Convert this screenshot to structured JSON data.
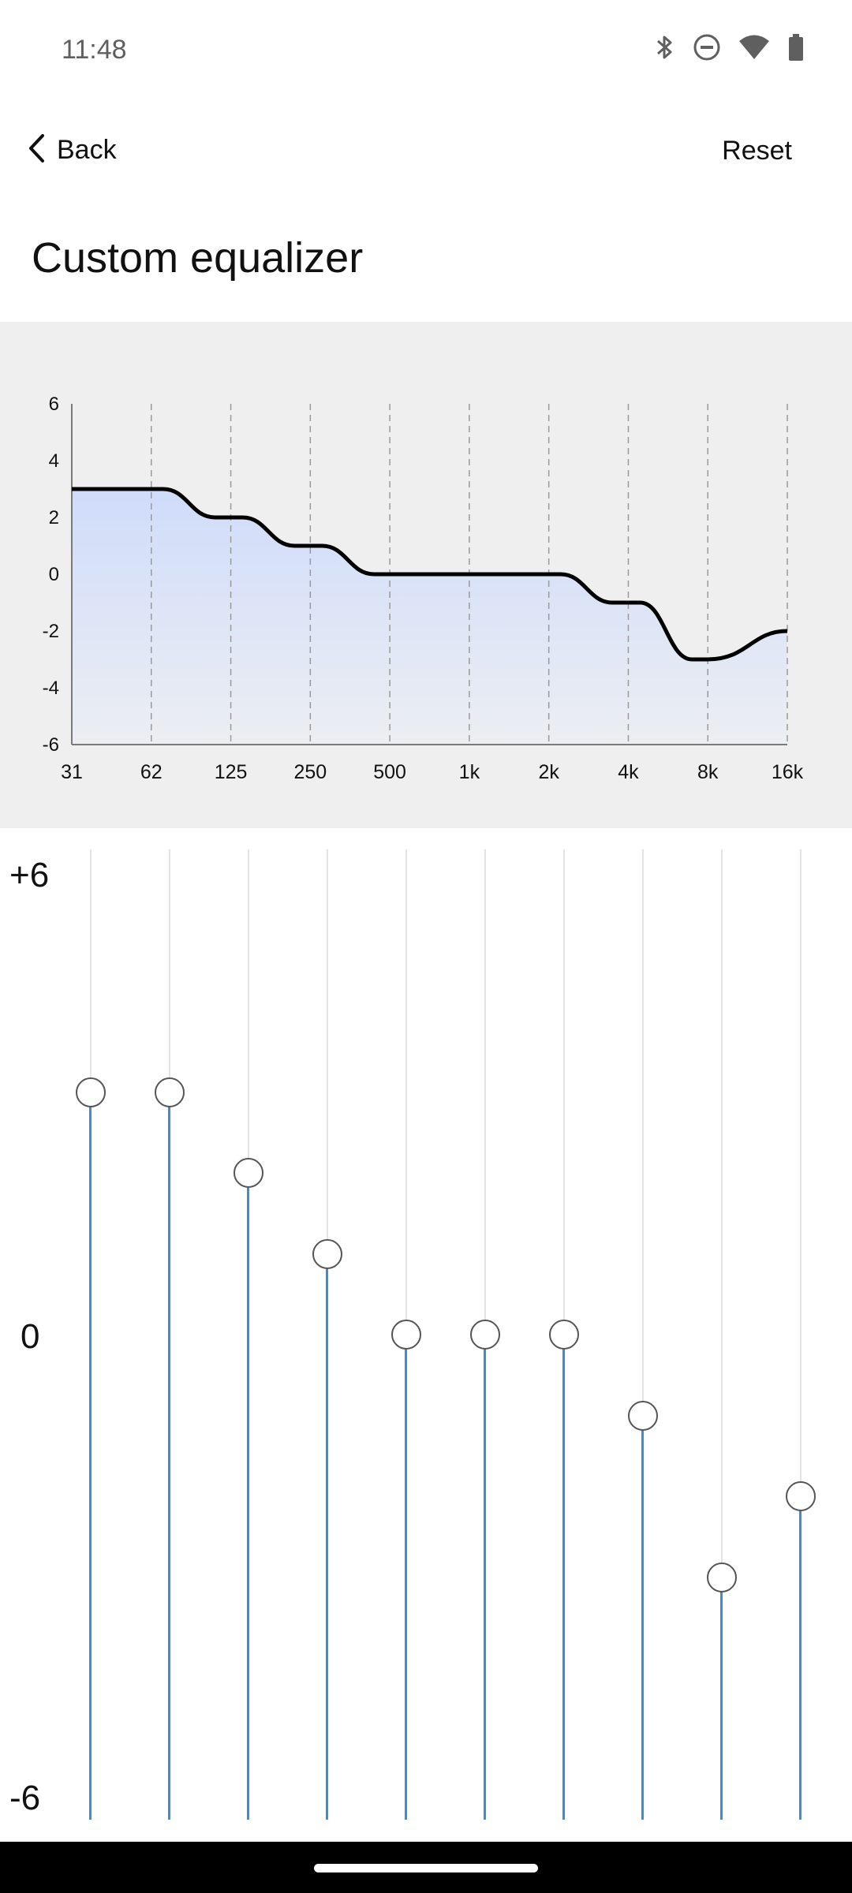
{
  "status_bar": {
    "time": "11:48",
    "icons": [
      "bluetooth-icon",
      "do-not-disturb-icon",
      "wifi-icon",
      "battery-icon"
    ]
  },
  "toolbar": {
    "back_label": "Back",
    "reset_label": "Reset"
  },
  "page": {
    "title": "Custom equalizer"
  },
  "graph": {
    "y_ticks": [
      "6",
      "4",
      "2",
      "0",
      "-2",
      "-4",
      "-6"
    ],
    "x_ticks": [
      "31",
      "62",
      "125",
      "250",
      "500",
      "1k",
      "2k",
      "4k",
      "8k",
      "16k"
    ],
    "colors": {
      "curve": "#000000",
      "fill_top": "#cfdcfa",
      "fill_bottom": "#eceef2",
      "grid": "#9a9a9a"
    }
  },
  "chart_data": {
    "type": "line",
    "x": [
      "31",
      "62",
      "125",
      "250",
      "500",
      "1k",
      "2k",
      "4k",
      "8k",
      "16k"
    ],
    "values": [
      3,
      3,
      2,
      1,
      0,
      0,
      0,
      -1,
      -3,
      -2
    ],
    "ylim": [
      -6,
      6
    ],
    "grid": true
  },
  "sliders": {
    "scale": {
      "top": "+6",
      "mid": "0",
      "bottom": "-6"
    },
    "range": [
      -6,
      6
    ],
    "bands": [
      {
        "band": "31",
        "gain": 3
      },
      {
        "band": "62",
        "gain": 3
      },
      {
        "band": "125",
        "gain": 2
      },
      {
        "band": "250",
        "gain": 1
      },
      {
        "band": "500",
        "gain": 0
      },
      {
        "band": "1k",
        "gain": 0
      },
      {
        "band": "2k",
        "gain": 0
      },
      {
        "band": "4k",
        "gain": -1
      },
      {
        "band": "8k",
        "gain": -3
      },
      {
        "band": "16k",
        "gain": -2
      }
    ],
    "accent": "#3a8fd0"
  }
}
